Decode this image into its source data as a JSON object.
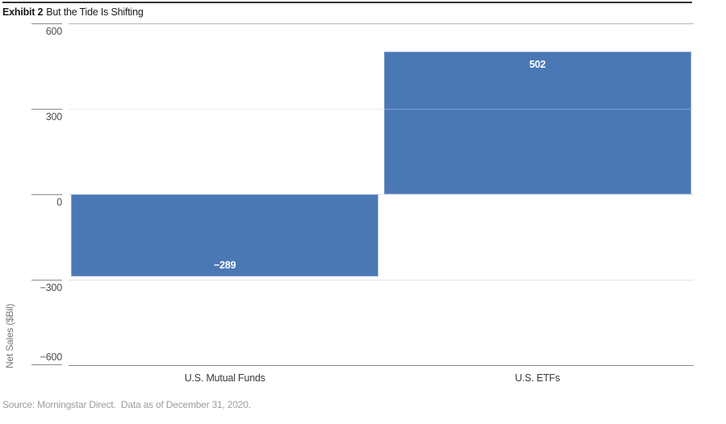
{
  "header": {
    "exhibit_label": "Exhibit 2",
    "title": "But the Tide Is Shifting"
  },
  "footer": {
    "source": "Source: Morningstar Direct.  Data as of December 31, 2020."
  },
  "chart_data": {
    "type": "bar",
    "title": "Exhibit 2 But the Tide Is Shifting",
    "categories": [
      "U.S. Mutual Funds",
      "U.S. ETFs"
    ],
    "values": [
      -289,
      502
    ],
    "value_labels": [
      "−289",
      "502"
    ],
    "xlabel": "",
    "ylabel": "Net Sales ($Bil)",
    "ylim": [
      -600,
      600
    ],
    "yticks": [
      600,
      300,
      0,
      -300,
      -600
    ],
    "ytick_labels": [
      "600",
      "300",
      "0",
      "−300",
      "−600"
    ],
    "grid": "horizontal gridlines on",
    "legend": "none",
    "bar_color": "#4a78b5",
    "colors": {
      "bar": "#4a78b5",
      "value_label_text": "#ffffff",
      "gridline": "#e3e3e3",
      "axis_line": "#8a8a8a",
      "top_rule": "#333333",
      "tick_label_text": "#4d4d4d",
      "category_label_text": "#3a3a3a",
      "source_text": "#9c9c9c",
      "background": "#ffffff"
    }
  }
}
